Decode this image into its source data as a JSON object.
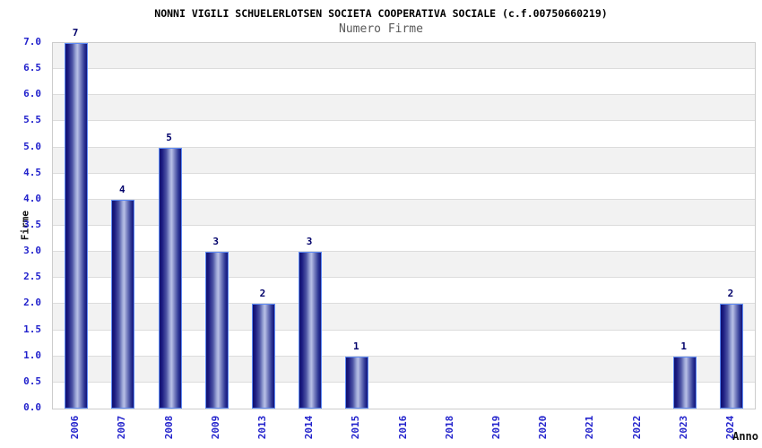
{
  "chart_data": {
    "type": "bar",
    "title": "NONNI VIGILI SCHUELERLOTSEN SOCIETA COOPERATIVA SOCIALE (c.f.00750660219)",
    "subtitle": "Numero Firme",
    "xlabel": "Anno",
    "ylabel": "Firme",
    "categories": [
      "2006",
      "2007",
      "2008",
      "2009",
      "2013",
      "2014",
      "2015",
      "2016",
      "2018",
      "2019",
      "2020",
      "2021",
      "2022",
      "2023",
      "2024"
    ],
    "values": [
      7,
      4,
      5,
      3,
      2,
      3,
      1,
      0,
      0,
      0,
      0,
      0,
      0,
      1,
      2
    ],
    "ylim": [
      0.0,
      7.0
    ],
    "ytick_step": 0.5,
    "ytick_labels": [
      "0.0",
      "0.5",
      "1.0",
      "1.5",
      "2.0",
      "2.5",
      "3.0",
      "3.5",
      "4.0",
      "4.5",
      "5.0",
      "5.5",
      "6.0",
      "6.5",
      "7.0"
    ],
    "grid": true,
    "legend_position": "none",
    "value_labels_shown": true,
    "bars_drawn_only_for_nonzero": true,
    "colors": {
      "title": "#000000",
      "subtitle": "#595959",
      "axis_title": "#111111",
      "tick_label": "#2222cc",
      "value_label": "#00006a",
      "bar_dark": "#14147a",
      "bar_light": "#b8c0e6",
      "bar_border": "#5e8bf5",
      "band_gray": "#f2f2f2",
      "band_white": "#ffffff",
      "gridline": "#dcdcdc",
      "plot_border": "#cccccc"
    }
  }
}
